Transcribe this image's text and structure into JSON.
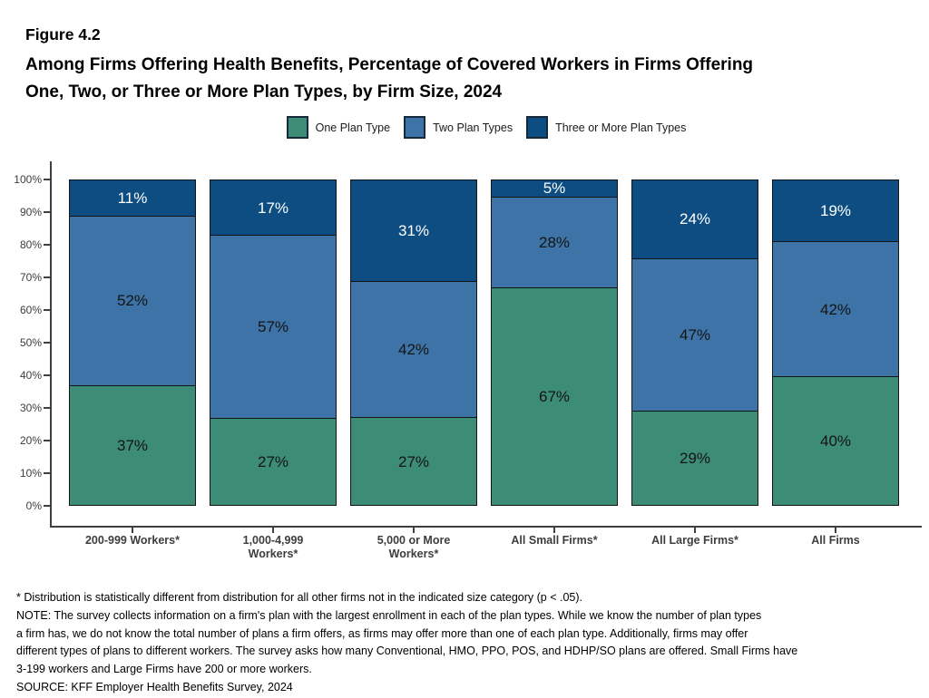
{
  "figure_label": "Figure 4.2",
  "title_line1": "Among Firms Offering Health Benefits, Percentage of Covered Workers in Firms Offering",
  "title_line2": "One, Two, or Three or More Plan Types, by Firm Size, 2024",
  "legend": [
    {
      "label": "One Plan Type",
      "color": "#3D8C75"
    },
    {
      "label": "Two Plan Types",
      "color": "#3D73A6"
    },
    {
      "label": "Three or More Plan Types",
      "color": "#0E4D81"
    }
  ],
  "chart_data": {
    "type": "bar",
    "stacked": true,
    "title": "Among Firms Offering Health Benefits, Percentage of Covered Workers in Firms Offering One, Two, or Three or More Plan Types, by Firm Size, 2024",
    "categories": [
      "200-999 Workers*",
      "1,000-4,999 Workers*",
      "5,000 or More Workers*",
      "All Small Firms*",
      "All Large Firms*",
      "All Firms"
    ],
    "category_label_lines": [
      [
        "200-999 Workers*"
      ],
      [
        "1,000-4,999",
        "Workers*"
      ],
      [
        "5,000 or More",
        "Workers*"
      ],
      [
        "All Small Firms*"
      ],
      [
        "All Large Firms*"
      ],
      [
        "All Firms"
      ]
    ],
    "series": [
      {
        "name": "One Plan Type",
        "color": "#3D8C75",
        "label_color": "#141414",
        "values": [
          37,
          27,
          27,
          67,
          29,
          40
        ]
      },
      {
        "name": "Two Plan Types",
        "color": "#3D73A6",
        "label_color": "#141414",
        "values": [
          52,
          57,
          42,
          28,
          47,
          42
        ]
      },
      {
        "name": "Three or More Plan Types",
        "color": "#0E4D81",
        "label_color": "#ffffff",
        "values": [
          11,
          17,
          31,
          5,
          24,
          19
        ]
      }
    ],
    "value_suffix": "%",
    "xlabel": "",
    "ylabel": "",
    "ylim": [
      0,
      100
    ],
    "yticks": [
      "0%",
      "10%",
      "20%",
      "30%",
      "40%",
      "50%",
      "60%",
      "70%",
      "80%",
      "90%",
      "100%"
    ],
    "grid": false,
    "legend_position": "top"
  },
  "footnotes": [
    "* Distribution is statistically different from distribution for all other firms not in the indicated size category (p < .05).",
    "NOTE: The survey collects information on a firm's plan with the largest enrollment in each of the plan types. While we know the number of plan types",
    "a firm has, we do not know the total number of plans a firm offers, as firms may offer more than one of each plan type. Additionally, firms may offer",
    "different types of plans to different workers. The survey asks how many Conventional, HMO, PPO, POS, and HDHP/SO plans are offered. Small Firms have",
    "3-199 workers and Large Firms have 200 or more workers.",
    "SOURCE: KFF Employer Health Benefits Survey, 2024"
  ]
}
